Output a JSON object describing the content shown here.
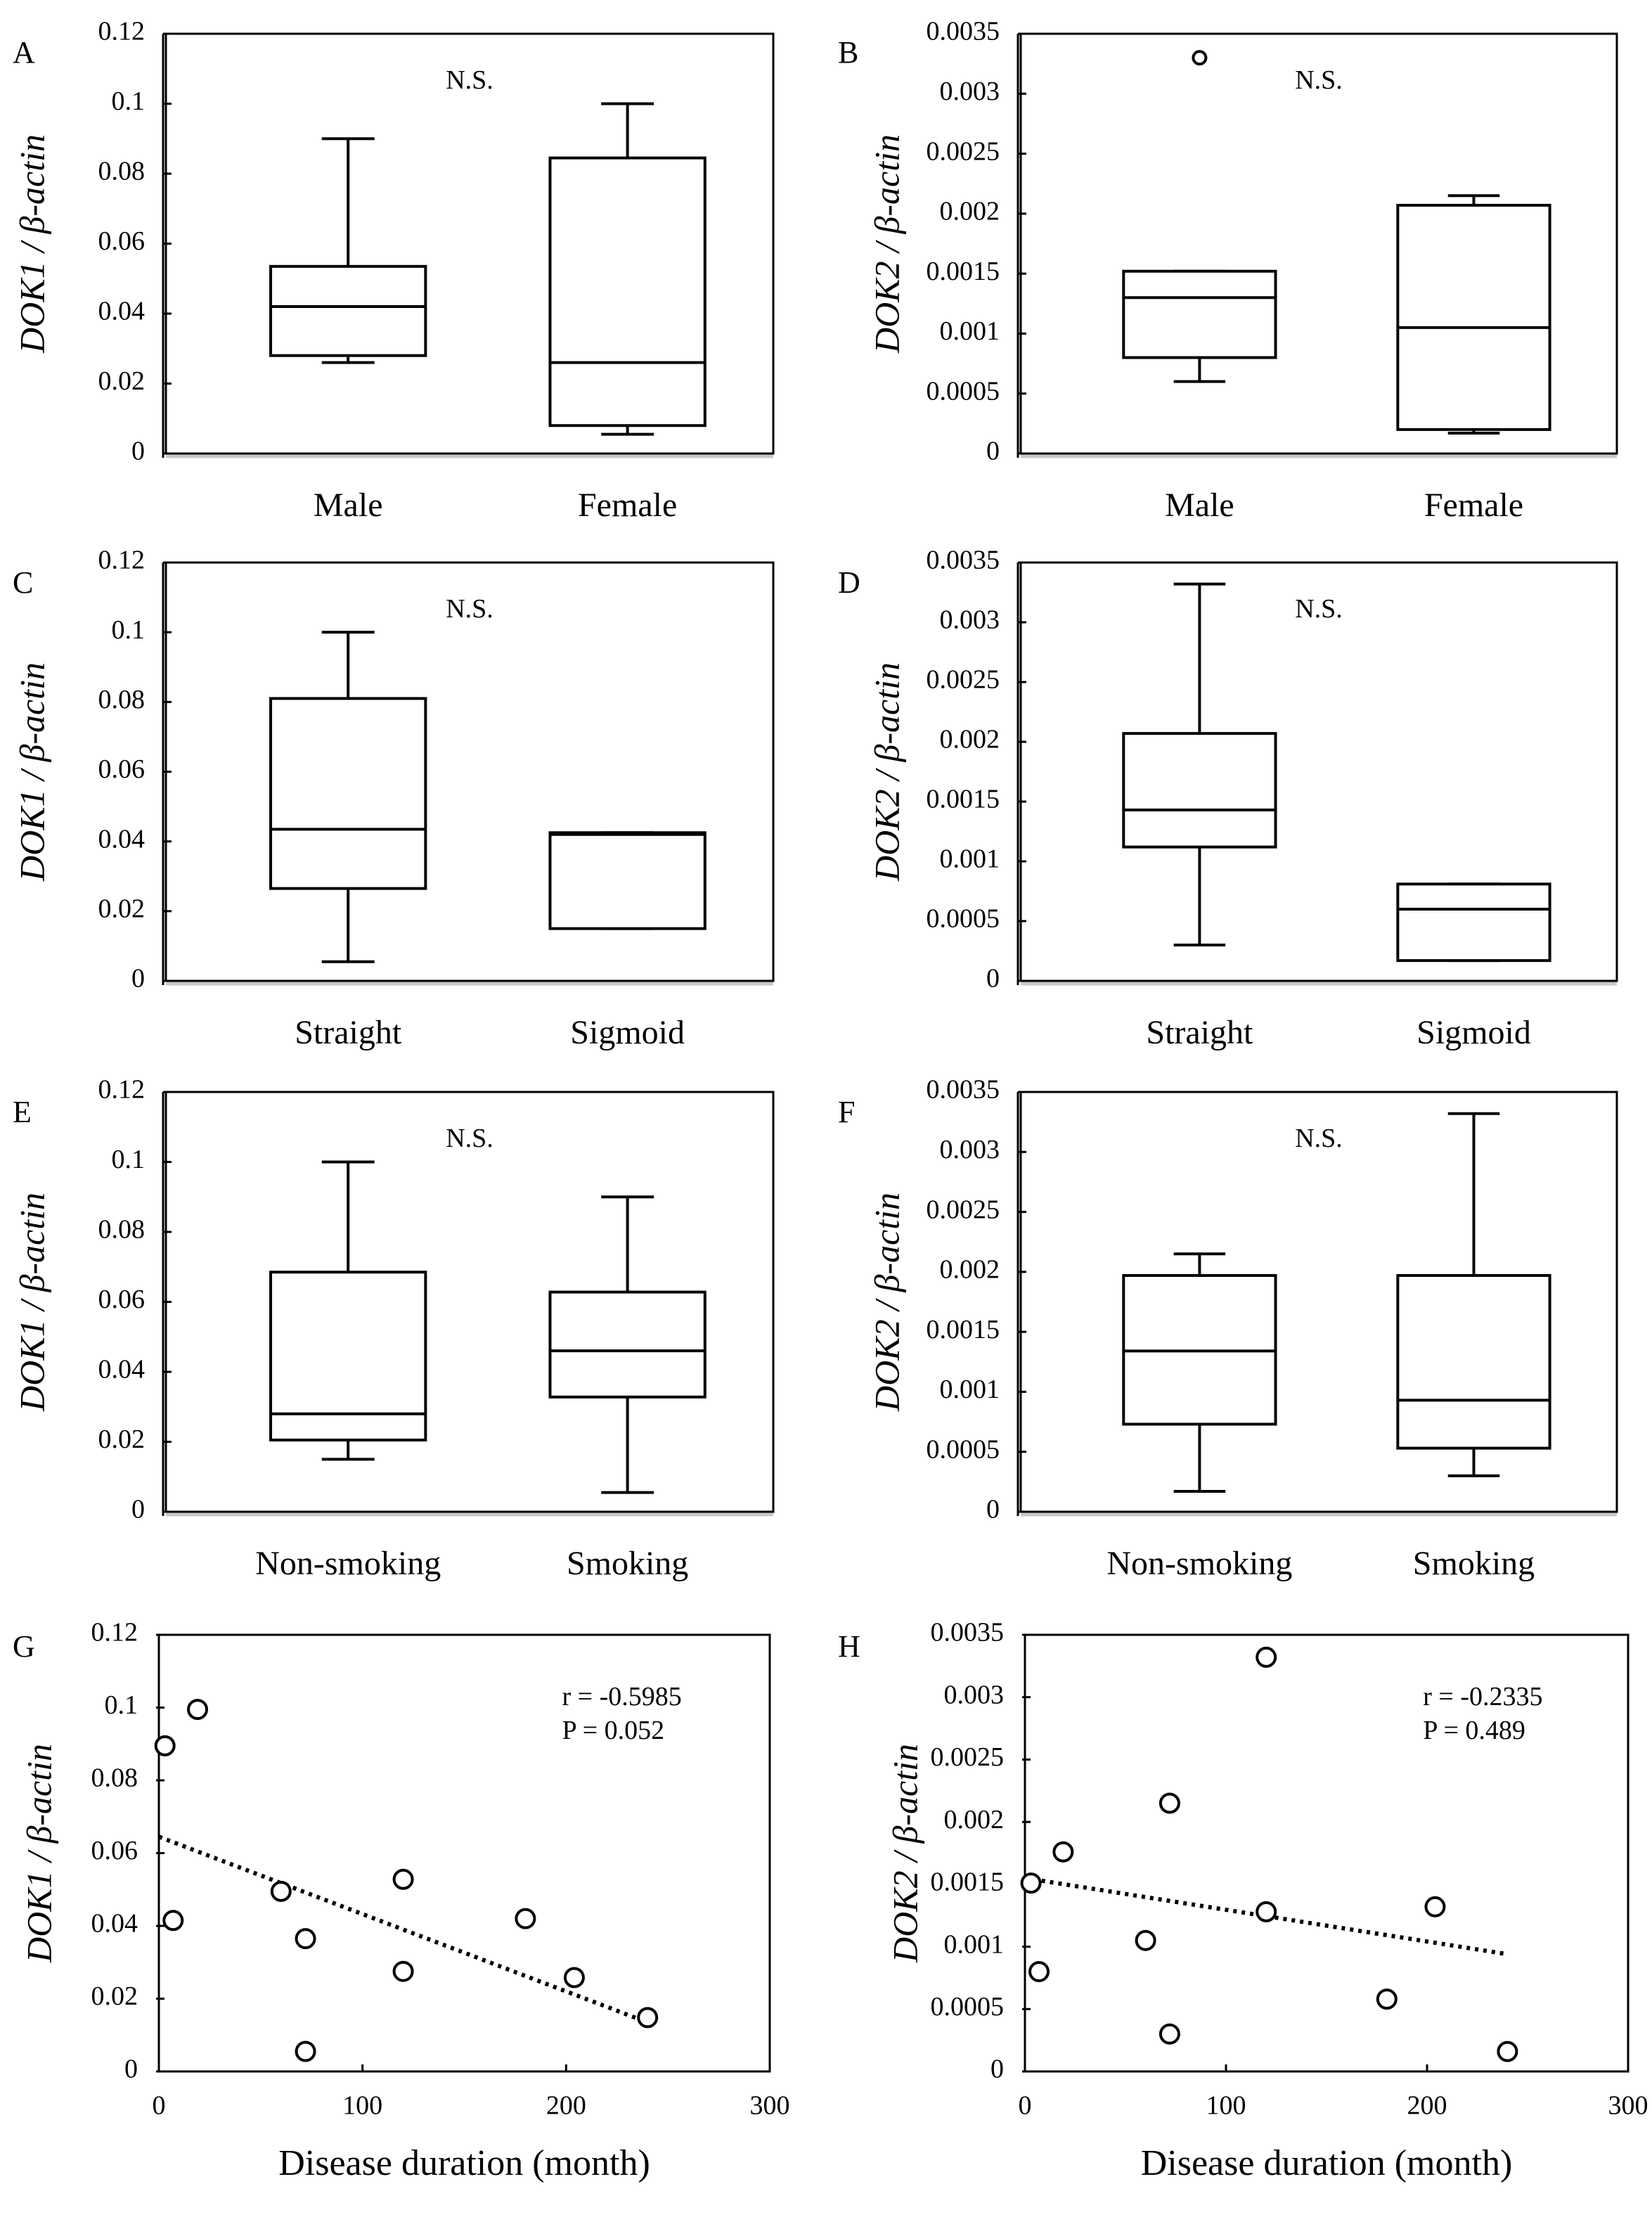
{
  "chart_data": [
    {
      "id": "A",
      "type": "box",
      "panel_label": "A",
      "ylabel": "DOK1 / β-actin",
      "ylim": [
        0,
        0.12
      ],
      "yticks": [
        "0",
        "0.02",
        "0.04",
        "0.06",
        "0.08",
        "0.1",
        "0.12"
      ],
      "annotation": "N.S.",
      "categories": [
        "Male",
        "Female"
      ],
      "boxes": [
        {
          "min": 0.026,
          "q1": 0.028,
          "median": 0.042,
          "q3": 0.0535,
          "max": 0.09,
          "outliers": []
        },
        {
          "min": 0.0055,
          "q1": 0.008,
          "median": 0.026,
          "q3": 0.0845,
          "max": 0.1,
          "outliers": []
        }
      ]
    },
    {
      "id": "B",
      "type": "box",
      "panel_label": "B",
      "ylabel": "DOK2 / β-actin",
      "ylim": [
        0,
        0.0035
      ],
      "yticks": [
        "0",
        "0.0005",
        "0.001",
        "0.0015",
        "0.002",
        "0.0025",
        "0.003",
        "0.0035"
      ],
      "annotation": "N.S.",
      "categories": [
        "Male",
        "Female"
      ],
      "boxes": [
        {
          "min": 0.0006,
          "q1": 0.0008,
          "median": 0.0013,
          "q3": 0.00152,
          "max": 0.00152,
          "outliers": [
            0.0033
          ]
        },
        {
          "min": 0.00017,
          "q1": 0.0002,
          "median": 0.00105,
          "q3": 0.00207,
          "max": 0.00215,
          "outliers": []
        }
      ]
    },
    {
      "id": "C",
      "type": "box",
      "panel_label": "C",
      "ylabel": "DOK1 / β-actin",
      "ylim": [
        0,
        0.12
      ],
      "yticks": [
        "0",
        "0.02",
        "0.04",
        "0.06",
        "0.08",
        "0.1",
        "0.12"
      ],
      "annotation": "N.S.",
      "categories": [
        "Straight",
        "Sigmoid"
      ],
      "boxes": [
        {
          "min": 0.0055,
          "q1": 0.0265,
          "median": 0.0435,
          "q3": 0.081,
          "max": 0.1,
          "outliers": []
        },
        {
          "min": 0.015,
          "q1": 0.015,
          "median": 0.042,
          "q3": 0.0425,
          "max": 0.0425,
          "outliers": []
        }
      ]
    },
    {
      "id": "D",
      "type": "box",
      "panel_label": "D",
      "ylabel": "DOK2 / β-actin",
      "ylim": [
        0,
        0.0035
      ],
      "yticks": [
        "0",
        "0.0005",
        "0.001",
        "0.0015",
        "0.002",
        "0.0025",
        "0.003",
        "0.0035"
      ],
      "annotation": "N.S.",
      "categories": [
        "Straight",
        "Sigmoid"
      ],
      "boxes": [
        {
          "min": 0.0003,
          "q1": 0.00112,
          "median": 0.00143,
          "q3": 0.00207,
          "max": 0.00332,
          "outliers": []
        },
        {
          "min": 0.00017,
          "q1": 0.00017,
          "median": 0.0006,
          "q3": 0.00081,
          "max": 0.00081,
          "outliers": []
        }
      ]
    },
    {
      "id": "E",
      "type": "box",
      "panel_label": "E",
      "ylabel": "DOK1 / β-actin",
      "ylim": [
        0,
        0.12
      ],
      "yticks": [
        "0",
        "0.02",
        "0.04",
        "0.06",
        "0.08",
        "0.1",
        "0.12"
      ],
      "annotation": "N.S.",
      "categories": [
        "Non-smoking",
        "Smoking"
      ],
      "boxes": [
        {
          "min": 0.015,
          "q1": 0.0205,
          "median": 0.028,
          "q3": 0.0685,
          "max": 0.1,
          "outliers": []
        },
        {
          "min": 0.0055,
          "q1": 0.0328,
          "median": 0.046,
          "q3": 0.0628,
          "max": 0.09,
          "outliers": []
        }
      ]
    },
    {
      "id": "F",
      "type": "box",
      "panel_label": "F",
      "ylabel": "DOK2 / β-actin",
      "ylim": [
        0,
        0.0035
      ],
      "yticks": [
        "0",
        "0.0005",
        "0.001",
        "0.0015",
        "0.002",
        "0.0025",
        "0.003",
        "0.0035"
      ],
      "annotation": "N.S.",
      "categories": [
        "Non-smoking",
        "Smoking"
      ],
      "boxes": [
        {
          "min": 0.00017,
          "q1": 0.00073,
          "median": 0.00134,
          "q3": 0.00197,
          "max": 0.00215,
          "outliers": []
        },
        {
          "min": 0.0003,
          "q1": 0.00053,
          "median": 0.00093,
          "q3": 0.00197,
          "max": 0.00332,
          "outliers": []
        }
      ]
    },
    {
      "id": "G",
      "type": "scatter",
      "panel_label": "G",
      "ylabel": "DOK1 / β-actin",
      "xlabel": "Disease duration (month)",
      "xlim": [
        0,
        300
      ],
      "ylim": [
        0,
        0.12
      ],
      "xticks": [
        "0",
        "100",
        "200",
        "300"
      ],
      "yticks": [
        "0",
        "0.02",
        "0.04",
        "0.06",
        "0.08",
        "0.1",
        "0.12"
      ],
      "points": [
        [
          3,
          0.0895
        ],
        [
          7,
          0.0415
        ],
        [
          19,
          0.0995
        ],
        [
          60,
          0.0495
        ],
        [
          72,
          0.0365
        ],
        [
          72,
          0.0055
        ],
        [
          120,
          0.0528
        ],
        [
          120,
          0.0275
        ],
        [
          180,
          0.042
        ],
        [
          204,
          0.0258
        ],
        [
          240,
          0.0148
        ]
      ],
      "trend": {
        "x0": 0,
        "y0": 0.0645,
        "x1": 240,
        "y1": 0.0135
      },
      "stats": [
        "r = -0.5985",
        "P = 0.052"
      ]
    },
    {
      "id": "H",
      "type": "scatter",
      "panel_label": "H",
      "ylabel": "DOK2 / β-actin",
      "xlabel": "Disease duration (month)",
      "xlim": [
        0,
        300
      ],
      "ylim": [
        0,
        0.0035
      ],
      "xticks": [
        "0",
        "100",
        "200",
        "300"
      ],
      "yticks": [
        "0",
        "0.0005",
        "0.001",
        "0.0015",
        "0.002",
        "0.0025",
        "0.003",
        "0.0035"
      ],
      "points": [
        [
          3,
          0.00151
        ],
        [
          7,
          0.0008
        ],
        [
          19,
          0.00176
        ],
        [
          60,
          0.00105
        ],
        [
          72,
          0.00215
        ],
        [
          72,
          0.0003
        ],
        [
          120,
          0.00332
        ],
        [
          120,
          0.00128
        ],
        [
          180,
          0.00058
        ],
        [
          204,
          0.00132
        ],
        [
          240,
          0.00016
        ]
      ],
      "trend": {
        "x0": 0,
        "y0": 0.00155,
        "x1": 240,
        "y1": 0.00094
      },
      "stats": [
        "r = -0.2335",
        "P = 0.489"
      ]
    }
  ]
}
